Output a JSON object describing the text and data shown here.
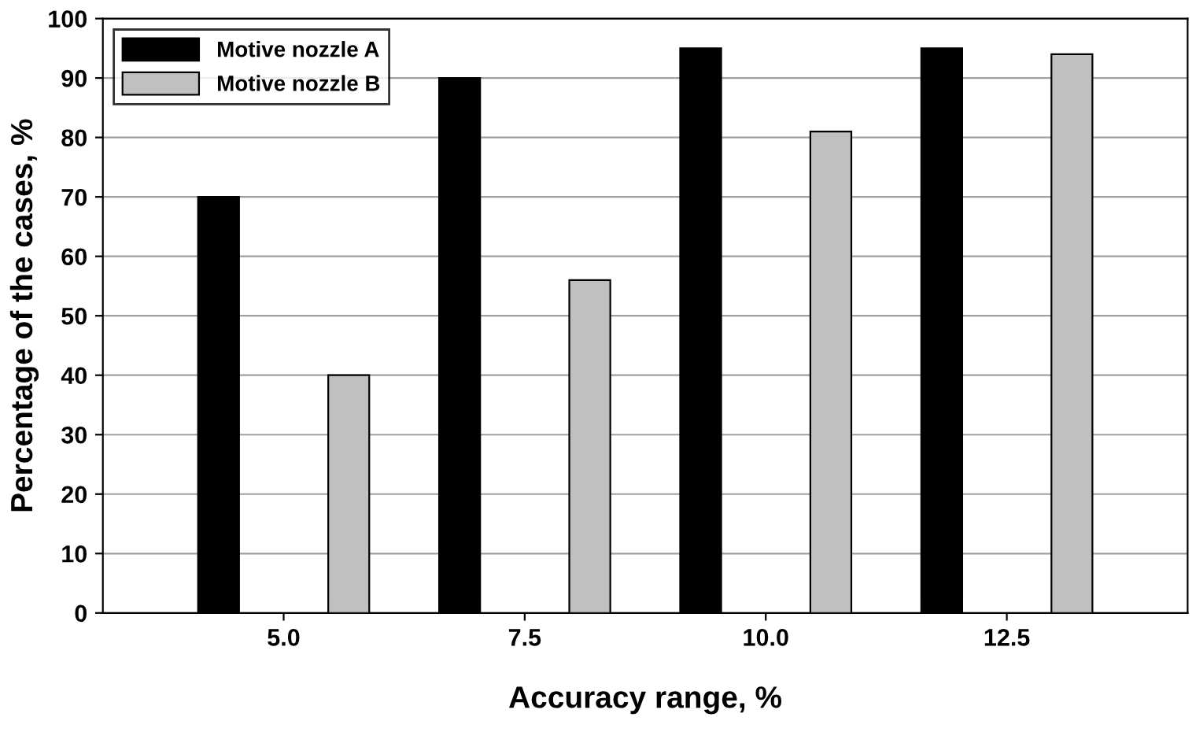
{
  "chart_data": {
    "type": "bar",
    "xlabel": "Accuracy range, %",
    "ylabel": "Percentage of the cases, %",
    "categories": [
      "5.0",
      "7.5",
      "10.0",
      "12.5"
    ],
    "series": [
      {
        "name": "Motive nozzle A",
        "color": "#000000",
        "values": [
          70,
          90,
          95,
          95
        ]
      },
      {
        "name": "Motive nozzle B",
        "color": "#c0c0c0",
        "values": [
          40,
          56,
          81,
          94
        ]
      }
    ],
    "ylim": [
      0,
      100
    ],
    "yticks": [
      0,
      10,
      20,
      30,
      40,
      50,
      60,
      70,
      80,
      90,
      100
    ],
    "grid": "y",
    "legend": "top left"
  }
}
